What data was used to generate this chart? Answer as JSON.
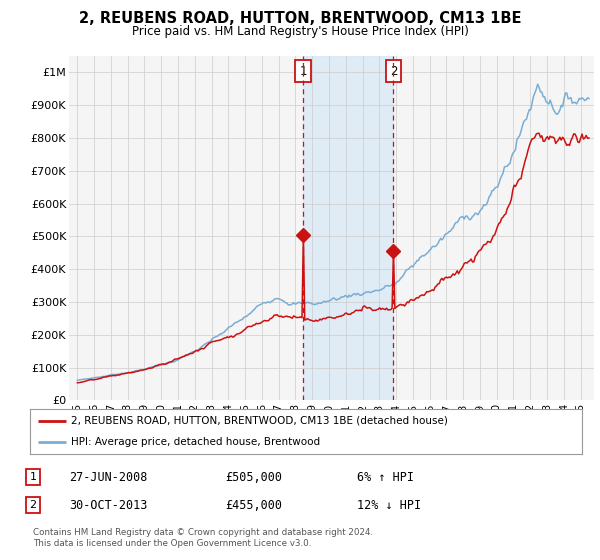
{
  "title": "2, REUBENS ROAD, HUTTON, BRENTWOOD, CM13 1BE",
  "subtitle": "Price paid vs. HM Land Registry's House Price Index (HPI)",
  "ylim": [
    0,
    1050000
  ],
  "yticks": [
    0,
    100000,
    200000,
    300000,
    400000,
    500000,
    600000,
    700000,
    800000,
    900000,
    1000000
  ],
  "ytick_labels": [
    "£0",
    "£100K",
    "£200K",
    "£300K",
    "£400K",
    "£500K",
    "£600K",
    "£700K",
    "£800K",
    "£900K",
    "£1M"
  ],
  "hpi_color": "#7aadd4",
  "price_color": "#cc1111",
  "marker1_year": 2008.5,
  "marker2_year": 2013.83,
  "marker1_price": 505000,
  "marker2_price": 455000,
  "marker1_label": "27-JUN-2008",
  "marker2_label": "30-OCT-2013",
  "marker1_amount": "£505,000",
  "marker2_amount": "£455,000",
  "marker1_hpi_pct": "6% ↑ HPI",
  "marker2_hpi_pct": "12% ↓ HPI",
  "legend_label_price": "2, REUBENS ROAD, HUTTON, BRENTWOOD, CM13 1BE (detached house)",
  "legend_label_hpi": "HPI: Average price, detached house, Brentwood",
  "footnote": "Contains HM Land Registry data © Crown copyright and database right 2024.\nThis data is licensed under the Open Government Licence v3.0.",
  "background_color": "#ffffff",
  "plot_bg_color": "#f5f5f5",
  "shade_color": "#d6e8f5",
  "xtick_start": 1995,
  "xtick_end": 2025,
  "xlim_left": 1994.5,
  "xlim_right": 2025.8
}
